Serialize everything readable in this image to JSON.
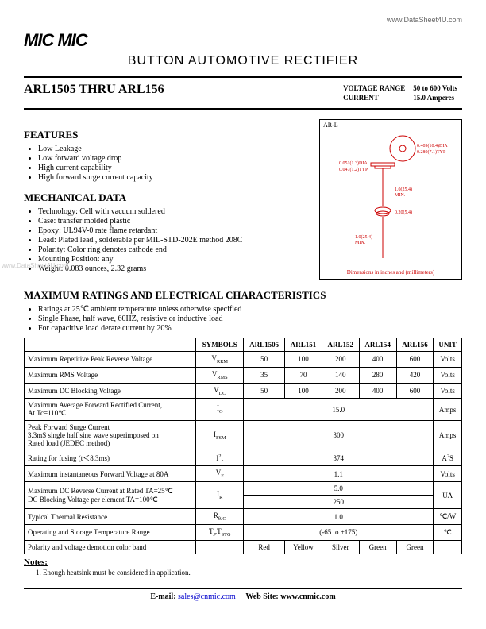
{
  "top_url": "www.DataSheet4U.com",
  "logo_text": "MIC MIC",
  "doc_title": "BUTTON AUTOMOTIVE RECTIFIER",
  "part_range": "ARL1505 THRU ARL156",
  "voltage_range_label": "VOLTAGE RANGE",
  "voltage_range_value": "50 to 600 Volts",
  "current_label": "CURRENT",
  "current_value": "15.0 Amperes",
  "pkg_label": "AR-L",
  "pkg_dim_note": "Dimensions in inches and (millimeters)",
  "features_title": "FEATURES",
  "features": [
    "Low Leakage",
    "Low forward voltage drop",
    "High current capability",
    "High forward surge current capacity"
  ],
  "mechdata_title": "MECHANICAL DATA",
  "mechdata": [
    "Technology: Cell with vacuum soldered",
    "Case: transfer molded plastic",
    "Epoxy: UL94V-0 rate flame retardant",
    "Lead: Plated lead , solderable per MIL-STD-202E method 208C",
    "Polarity: Color ring denotes cathode end",
    "Mounting Position: any",
    "Weight: 0.083 ounces, 2.32 grams"
  ],
  "maxratings_title": "MAXIMUM RATINGS AND ELECTRICAL CHARACTERISTICS",
  "maxratings_notes": [
    "Ratings at 25℃ ambient temperature unless otherwise specified",
    "Single Phase, half wave, 60HZ, resistive or inductive load",
    "For capacitive load derate current by 20%"
  ],
  "table": {
    "headers": [
      "",
      "SYMBOLS",
      "ARL1505",
      "ARL151",
      "ARL152",
      "ARL154",
      "ARL156",
      "UNIT"
    ],
    "rows": [
      {
        "desc": "Maximum Repetitive Peak Reverse Voltage",
        "sym": "V<sub>RRM</sub>",
        "vals": [
          "50",
          "100",
          "200",
          "400",
          "600"
        ],
        "unit": "Volts"
      },
      {
        "desc": "Maximum RMS Voltage",
        "sym": "V<sub>RMS</sub>",
        "vals": [
          "35",
          "70",
          "140",
          "280",
          "420"
        ],
        "unit": "Volts"
      },
      {
        "desc": "Maximum DC Blocking Voltage",
        "sym": "V<sub>DC</sub>",
        "vals": [
          "50",
          "100",
          "200",
          "400",
          "600"
        ],
        "unit": "Volts"
      },
      {
        "desc": "Maximum Average Forward Rectified Current,<br>At Tc=110℃",
        "sym": "I<sub>O</sub>",
        "span": "15.0",
        "unit": "Amps"
      },
      {
        "desc": "Peak Forward Surge Current<br>3.3mS single half sine wave superimposed on<br>Rated load (JEDEC method)",
        "sym": "I<sub>FSM</sub>",
        "span": "300",
        "unit": "Amps"
      },
      {
        "desc": "Rating for fusing (t＜8.3ms)",
        "sym": "I<sup>2</sup>t",
        "span": "374",
        "unit": "A<sup>2</sup>S"
      },
      {
        "desc": "Maximum instantaneous Forward Voltage at 80A",
        "sym": "V<sub>F</sub>",
        "span": "1.1",
        "unit": "Volts"
      },
      {
        "desc": "Maximum DC Reverse Current at Rated TA=25℃<br>DC Blocking Voltage per element TA=100℃",
        "sym": "I<sub>R</sub>",
        "span2": [
          "5.0",
          "250"
        ],
        "unit": "UA"
      },
      {
        "desc": "Typical Thermal Resistance",
        "sym": "R<sub>θJC</sub>",
        "span": "1.0",
        "unit": "℃/W"
      },
      {
        "desc": "Operating and Storage Temperature Range",
        "sym": "T<sub>J</sub>,T<sub>STG</sub>",
        "span": "(-65 to +175)",
        "unit": "℃"
      },
      {
        "desc": "Polarity and voltage demotion color band",
        "sym": "",
        "vals": [
          "Red",
          "Yellow",
          "Silver",
          "Green",
          "Green"
        ],
        "unit": ""
      }
    ]
  },
  "notes_hdr": "Notes:",
  "notes": [
    "Enough heatsink must be considered in application."
  ],
  "footer_email_label": "E-mail:",
  "footer_email": "sales@cnmic.com",
  "footer_site_label": "Web Site:",
  "footer_site": "www.cnmic.com",
  "watermark": "www.DataSheet4U.com"
}
